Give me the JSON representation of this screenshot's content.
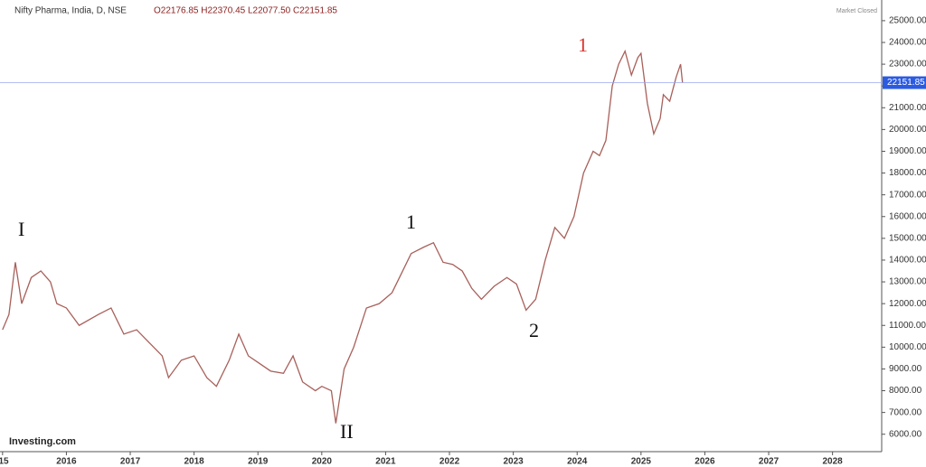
{
  "chart_data": {
    "type": "line",
    "title": "Nifty Pharma, India, D, NSE",
    "ohlc": "O22176.85 H22370.45 L22077.50 C22151.85",
    "status": "Market Closed",
    "brand": "Investing.com",
    "last_price": {
      "value": 22151.85,
      "label": "22151.85"
    },
    "annotations": [
      "I",
      "II",
      "1",
      "2",
      "1"
    ],
    "xlim": [
      2014.96,
      2028.77
    ],
    "xticks": [
      {
        "value": 2015,
        "label": "'15"
      },
      2016,
      2017,
      2018,
      2019,
      2020,
      2021,
      2022,
      2023,
      2024,
      2025,
      2026,
      2027,
      2028
    ],
    "ylim": [
      5200,
      25950
    ],
    "yticks": [
      {
        "value": 6000,
        "label": "6000.00"
      },
      {
        "value": 7000,
        "label": "7000.00"
      },
      {
        "value": 8000,
        "label": "8000.00"
      },
      {
        "value": 9000,
        "label": "9000.00"
      },
      {
        "value": 10000,
        "label": "10000.00"
      },
      {
        "value": 11000,
        "label": "11000.00"
      },
      {
        "value": 12000,
        "label": "12000.00"
      },
      {
        "value": 13000,
        "label": "13000.00"
      },
      {
        "value": 14000,
        "label": "14000.00"
      },
      {
        "value": 15000,
        "label": "15000.00"
      },
      {
        "value": 16000,
        "label": "16000.00"
      },
      {
        "value": 17000,
        "label": "17000.00"
      },
      {
        "value": 18000,
        "label": "18000.00"
      },
      {
        "value": 19000,
        "label": "19000.00"
      },
      {
        "value": 20000,
        "label": "20000.00"
      },
      {
        "value": 21000,
        "label": "21000.00"
      },
      {
        "value": 22000,
        "label": "22000.00"
      },
      {
        "value": 23000,
        "label": "23000.00"
      },
      {
        "value": 24000,
        "label": "24000.00"
      },
      {
        "value": 25000,
        "label": "25000.00"
      }
    ],
    "x": [
      2015.0,
      2015.1,
      2015.2,
      2015.3,
      2015.45,
      2015.6,
      2015.75,
      2015.85,
      2016.0,
      2016.2,
      2016.5,
      2016.7,
      2016.9,
      2017.1,
      2017.3,
      2017.5,
      2017.6,
      2017.8,
      2018.0,
      2018.2,
      2018.35,
      2018.55,
      2018.7,
      2018.85,
      2019.0,
      2019.2,
      2019.4,
      2019.55,
      2019.7,
      2019.9,
      2020.0,
      2020.15,
      2020.22,
      2020.35,
      2020.5,
      2020.7,
      2020.9,
      2021.1,
      2021.25,
      2021.4,
      2021.6,
      2021.75,
      2021.9,
      2022.05,
      2022.2,
      2022.35,
      2022.5,
      2022.7,
      2022.9,
      2023.05,
      2023.2,
      2023.35,
      2023.5,
      2023.65,
      2023.8,
      2023.95,
      2024.1,
      2024.25,
      2024.35,
      2024.45,
      2024.55,
      2024.65,
      2024.75,
      2024.85,
      2024.95,
      2025.0,
      2025.1,
      2025.2,
      2025.3,
      2025.35,
      2025.45,
      2025.55,
      2025.62,
      2025.65
    ],
    "series": [
      {
        "color": "#a8605a",
        "values": [
          10800,
          11500,
          13900,
          12000,
          13200,
          13500,
          13000,
          12000,
          11800,
          11000,
          11500,
          11800,
          10600,
          10800,
          10200,
          9600,
          8600,
          9400,
          9600,
          8600,
          8200,
          9400,
          10600,
          9600,
          9300,
          8900,
          8800,
          9600,
          8400,
          8000,
          8200,
          8000,
          6500,
          9000,
          10000,
          11800,
          12000,
          12500,
          13400,
          14300,
          14600,
          14800,
          13900,
          13800,
          13500,
          12700,
          12200,
          12800,
          13200,
          12900,
          11700,
          12200,
          14000,
          15500,
          15000,
          16000,
          18000,
          19000,
          18800,
          19500,
          22000,
          23000,
          23600,
          22500,
          23300,
          23500,
          21200,
          19800,
          20500,
          21600,
          21300,
          22400,
          23000,
          22150
        ]
      }
    ]
  }
}
